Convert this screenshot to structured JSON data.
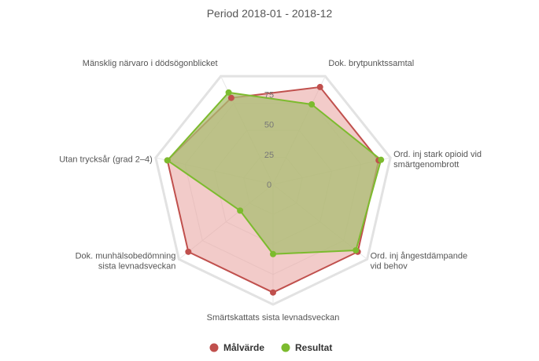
{
  "chart_data": {
    "type": "radar",
    "title": "Period 2018-01 - 2018-12",
    "categories": [
      "Dok. brytpunktssamtal",
      "Ord. inj stark opioid vid smärtgenombrott",
      "Ord. inj ångestdämpande vid behov",
      "Smärtskattats sista levnadsveckan",
      "Dok. munhälsobedömning sista levnadsveckan",
      "Utan trycksår (grad 2–4)",
      "Mänsklig närvaro i dödsögonblicket"
    ],
    "category_lines": [
      [
        "Dok. brytpunktssamtal"
      ],
      [
        "Ord. inj stark opioid vid",
        "smärtgenombrott"
      ],
      [
        "Ord. inj ångestdämpande",
        "vid behov"
      ],
      [
        "Smärtskattats sista levnadsveckan"
      ],
      [
        "Dok. munhälsobedömning",
        "sista levnadsveckan"
      ],
      [
        "Utan trycksår (grad 2–4)"
      ],
      [
        "Mänsklig närvaro i dödsögonblicket"
      ]
    ],
    "ticks": [
      "0",
      "25",
      "50",
      "75"
    ],
    "tick_values": [
      0,
      25,
      50,
      75
    ],
    "rmax": 100,
    "grid": true,
    "legend_position": "bottom",
    "series": [
      {
        "name": "Målvärde",
        "color": "#c0504d",
        "fill": "#e8a09c",
        "values": [
          90,
          90,
          90,
          90,
          90,
          90,
          80
        ]
      },
      {
        "name": "Resultat",
        "color": "#7cbb2e",
        "fill": "#aabd72",
        "values": [
          74,
          92,
          88,
          58,
          35,
          90,
          85
        ]
      }
    ]
  }
}
